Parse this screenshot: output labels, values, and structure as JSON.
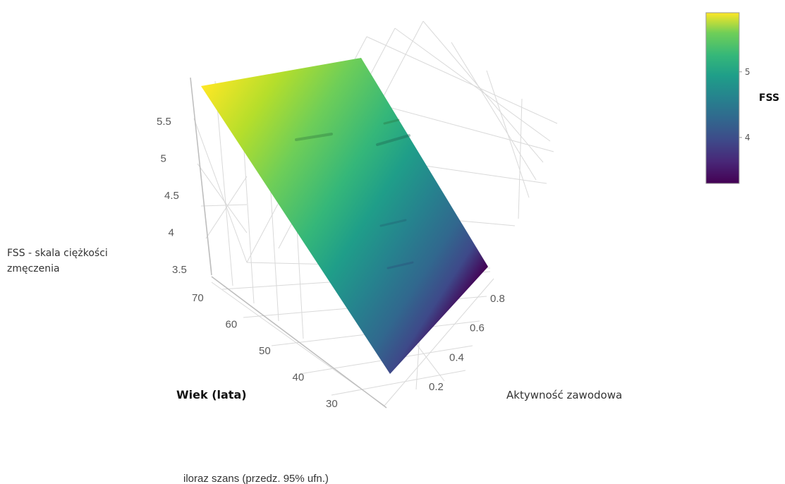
{
  "chart_data": {
    "type": "surface",
    "title": "",
    "z_axis": {
      "label": "FSS - skala ciężkości zmęczenia",
      "ticks": [
        "3.5",
        "4",
        "4.5",
        "5",
        "5.5"
      ],
      "range": [
        3.3,
        5.9
      ]
    },
    "age_axis": {
      "label": "Wiek (lata)",
      "ticks": [
        "30",
        "40",
        "50",
        "60",
        "70"
      ],
      "range": [
        25,
        75
      ]
    },
    "activity_axis": {
      "label": "Aktywność zawodowa",
      "ticks": [
        "0.2",
        "0.4",
        "0.6",
        "0.8"
      ],
      "range": [
        0,
        1
      ]
    },
    "surface_corners": [
      {
        "age": 75,
        "activity": 0,
        "fss": 5.85
      },
      {
        "age": 75,
        "activity": 1,
        "fss": 5.3
      },
      {
        "age": 25,
        "activity": 1,
        "fss": 3.3
      },
      {
        "age": 25,
        "activity": 0,
        "fss": 3.85
      }
    ],
    "colorbar": {
      "title": "FSS",
      "ticks": [
        "4",
        "5"
      ],
      "range": [
        3.3,
        5.9
      ],
      "colorscale": "viridis"
    },
    "caption": "iloraz szans (przedz. 95% ufn.)"
  }
}
